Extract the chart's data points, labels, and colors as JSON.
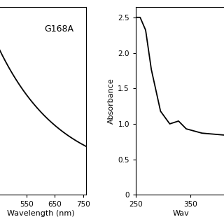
{
  "panel1": {
    "label": "G168A",
    "xlabel": "Wavelength (nm)",
    "xlim": [
      440,
      760
    ],
    "xticks": [
      550,
      650,
      750
    ],
    "xtick_labels": [
      "550",
      "650",
      "750"
    ],
    "ylim": [
      0.04,
      0.75
    ],
    "ytick_labels": []
  },
  "panel2": {
    "xlabel": "Wav",
    "ylabel": "Absorbance",
    "xlim": [
      250,
      415
    ],
    "xticks": [
      250,
      350
    ],
    "xtick_labels": [
      "250",
      "350"
    ],
    "ylim": [
      0,
      2.65
    ],
    "yticks": [
      0,
      0.5,
      1.0,
      1.5,
      2.0,
      2.5
    ],
    "ytick_labels": [
      "0",
      "0.5",
      "1.0",
      "1.5",
      "2.0",
      "2.5"
    ]
  },
  "line_color": "#000000",
  "line_width": 1.3,
  "background_color": "#ffffff",
  "spine_color": "#000000",
  "tick_color": "#000000",
  "fontsize_label": 8,
  "fontsize_tick": 7.5,
  "fontsize_annotation": 9
}
